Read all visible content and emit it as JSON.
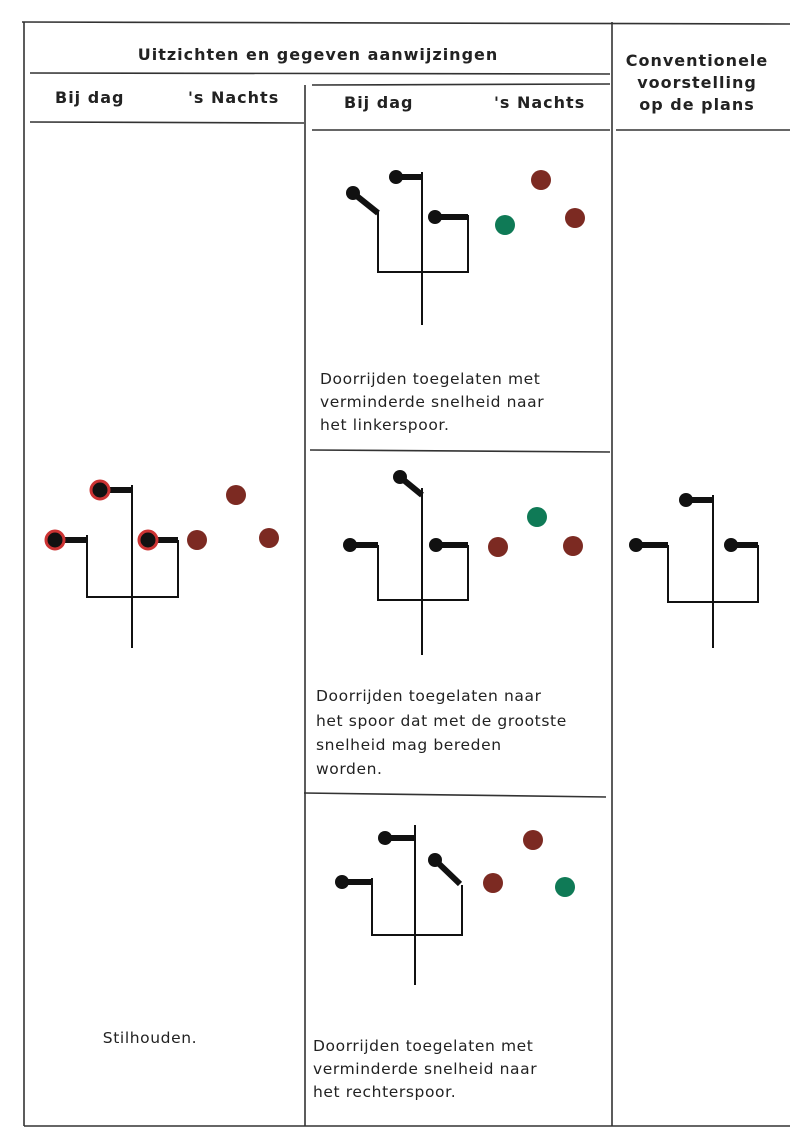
{
  "header": {
    "title": "Uitzichten en gegeven aanwijzingen",
    "conventional": [
      "Conventionele",
      "voorstelling",
      "op de plans"
    ]
  },
  "left": {
    "day": "Bij dag",
    "night": "'s Nachts",
    "description": "Stilhouden."
  },
  "middle": {
    "day": "Bij dag",
    "night": "'s Nachts"
  },
  "rows": [
    {
      "description": [
        "Doorrijden toegelaten met",
        "verminderde snelheid naar",
        "het linkerspoor."
      ]
    },
    {
      "description": [
        "Doorrijden toegelaten naar",
        "het spoor dat met de grootste",
        "snelheid mag bereden",
        "worden."
      ]
    },
    {
      "description": [
        "Doorrijden toegelaten met",
        "verminderde snelheid naar",
        "het rechterspoor."
      ]
    }
  ]
}
